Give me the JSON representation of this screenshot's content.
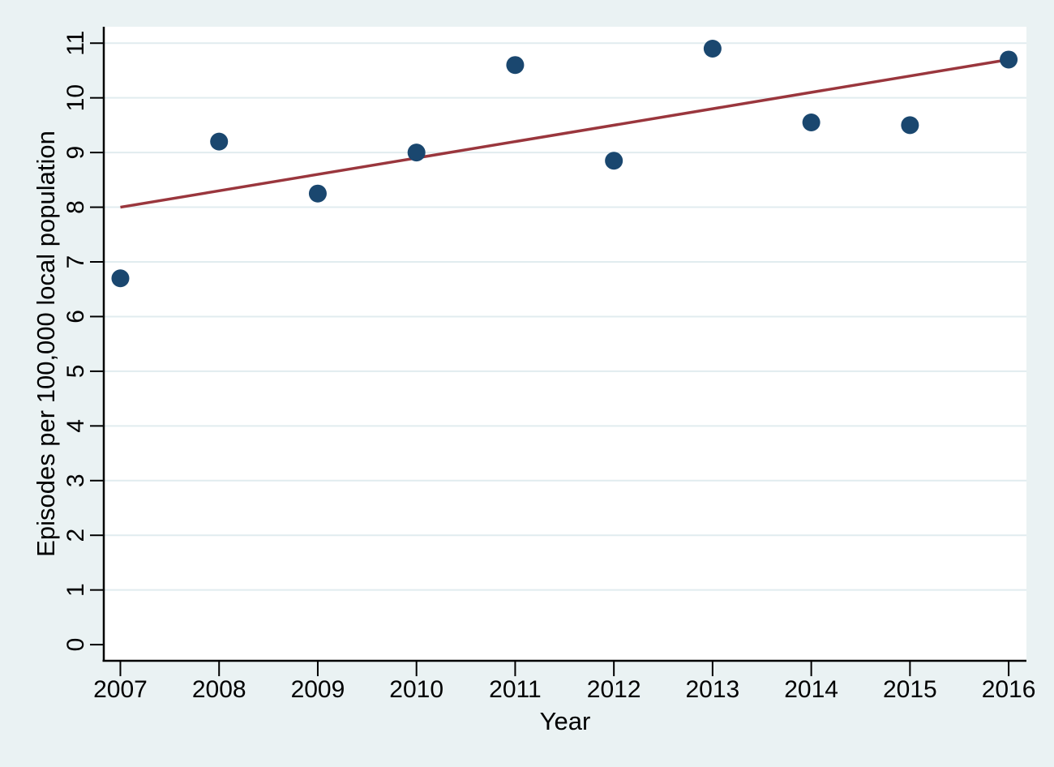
{
  "figure": {
    "background_color": "#eaf2f3",
    "plot_background_color": "#ffffff",
    "axis_color": "#000000",
    "grid_color": "#e1ecef",
    "text_color": "#000000"
  },
  "chart_data": {
    "type": "scatter",
    "title": "",
    "xlabel": "Year",
    "ylabel": "Episodes per 100,000 local population",
    "x": [
      2007,
      2008,
      2009,
      2010,
      2011,
      2012,
      2013,
      2014,
      2015,
      2016
    ],
    "series": [
      {
        "name": "episodes-per-100000",
        "type": "scatter",
        "marker_color": "#1a476f",
        "marker_radius": 11,
        "values": [
          6.7,
          9.2,
          8.25,
          9.0,
          10.6,
          8.85,
          10.9,
          9.55,
          9.5,
          10.7
        ]
      },
      {
        "name": "linear-fit",
        "type": "line",
        "line_color": "#9a363d",
        "line_width": 3.5,
        "points": [
          [
            2007,
            8.0
          ],
          [
            2016,
            10.7
          ]
        ]
      }
    ],
    "xticks": [
      2007,
      2008,
      2009,
      2010,
      2011,
      2012,
      2013,
      2014,
      2015,
      2016
    ],
    "yticks": [
      0,
      1,
      2,
      3,
      4,
      5,
      6,
      7,
      8,
      9,
      10,
      11
    ],
    "grid_yticks": [
      1,
      2,
      3,
      4,
      5,
      6,
      7,
      8,
      9,
      10,
      11
    ],
    "xlim": [
      2006.84,
      2016.18
    ],
    "ylim": [
      -0.31,
      11.3
    ],
    "grid": "horizontal",
    "legend": "none",
    "ytick_rotation": -90
  }
}
